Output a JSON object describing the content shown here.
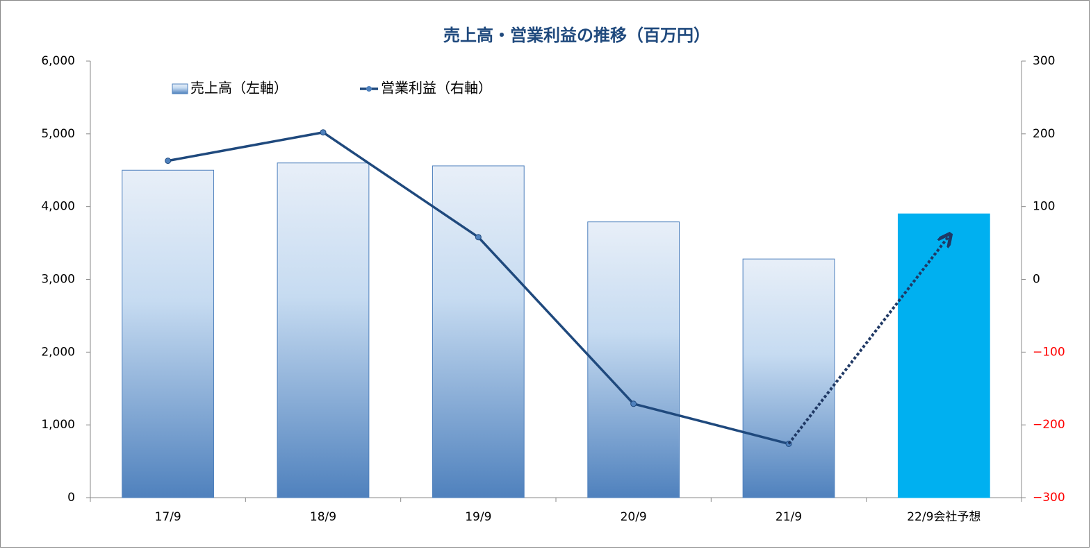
{
  "chart_data": {
    "type": "bar_line",
    "title": "売上高・営業利益の推移（百万円）",
    "categories": [
      "17/9",
      "18/9",
      "19/9",
      "20/9",
      "21/9",
      "22/9会社予想"
    ],
    "series": [
      {
        "name": "売上高（左軸）",
        "type": "bar",
        "colors": [
          "#4f81bd",
          "#4f81bd",
          "#4f81bd",
          "#4f81bd",
          "#4f81bd",
          "#00b0f0"
        ],
        "gradient": [
          true,
          true,
          true,
          true,
          true,
          false
        ],
        "values": [
          4500,
          4600,
          4560,
          3790,
          3280,
          3900
        ]
      },
      {
        "name": "営業利益（右軸）",
        "type": "line",
        "axis": "y2",
        "color": "#1f497d",
        "values": [
          163,
          202,
          58,
          -171,
          -226,
          null
        ]
      }
    ],
    "ylim": [
      0,
      6000
    ],
    "yticks": [
      0,
      {
        "value": 1000,
        "label": "1,000"
      },
      {
        "value": 2000,
        "label": "2,000"
      },
      {
        "value": 3000,
        "label": "3,000"
      },
      {
        "value": 4000,
        "label": "4,000"
      },
      {
        "value": 5000,
        "label": "5,000"
      },
      {
        "value": 6000,
        "label": "6,000"
      }
    ],
    "y2lim": [
      -300,
      300
    ],
    "y2ticks": [
      {
        "value": -300,
        "label": "−300"
      },
      {
        "value": -200,
        "label": "−200"
      },
      {
        "value": -100,
        "label": "−100"
      },
      0,
      100,
      200,
      300
    ],
    "negative_tick_color": "#ff0000",
    "arrow_color": "#1f3864",
    "legend": "top-left"
  }
}
